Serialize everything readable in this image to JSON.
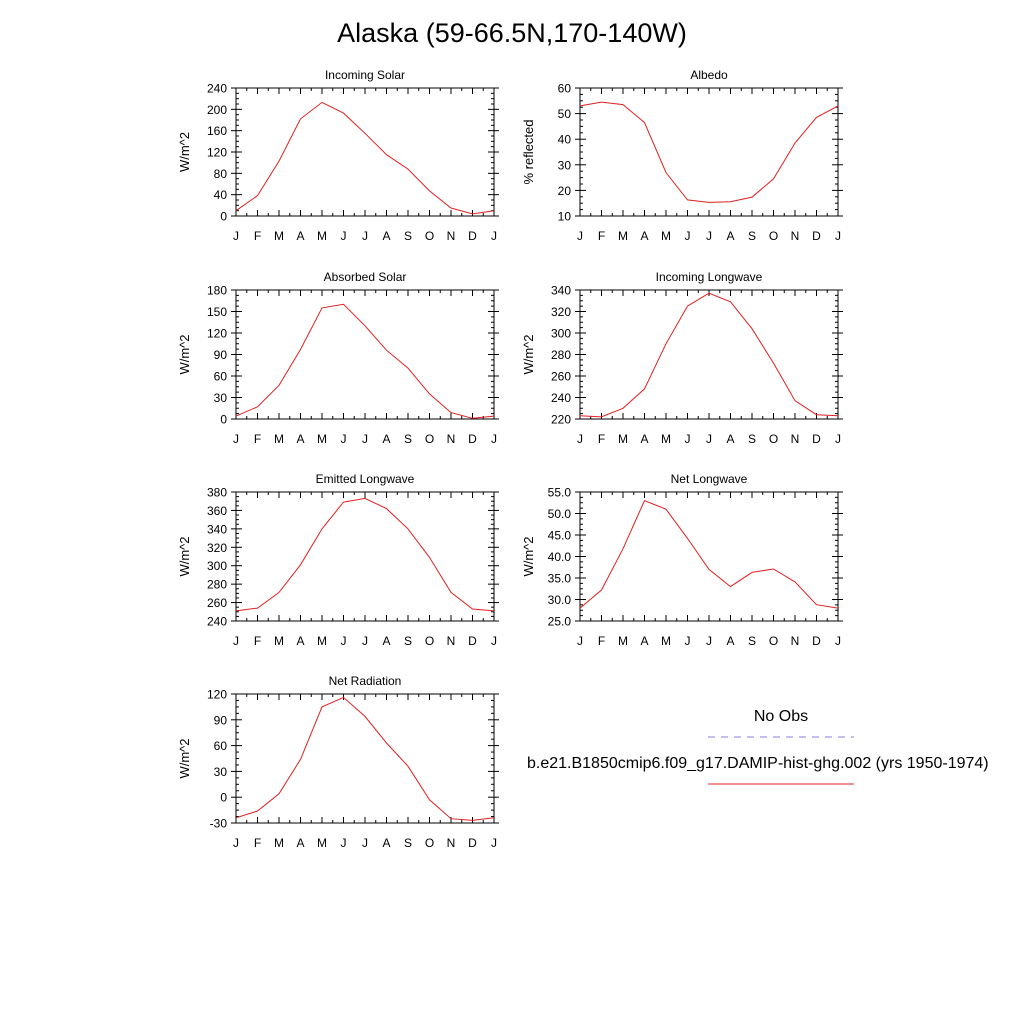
{
  "figure": {
    "title": "Alaska (59-66.5N,170-140W)"
  },
  "legend": {
    "obs_label": "No Obs",
    "obs_color": "#8080e0",
    "model_label": "b.e21.B1850cmip6.f09_g17.DAMIP-hist-ghg.002 (yrs 1950-1974)",
    "model_color": "#e02020"
  },
  "chart_data": [
    {
      "type": "line",
      "title": "Incoming Solar",
      "ylabel": "W/m^2",
      "categories": [
        "J",
        "F",
        "M",
        "A",
        "M",
        "J",
        "J",
        "A",
        "S",
        "O",
        "N",
        "D",
        "J"
      ],
      "ylim": [
        0,
        240
      ],
      "yticks": [
        "0",
        "40",
        "80",
        "120",
        "160",
        "200",
        "240"
      ],
      "series": [
        {
          "values": [
            10,
            38,
            103,
            182,
            213,
            193,
            155,
            115,
            88,
            47,
            15,
            4,
            10
          ]
        }
      ]
    },
    {
      "type": "line",
      "title": "Albedo",
      "ylabel": "% reflected",
      "categories": [
        "J",
        "F",
        "M",
        "A",
        "M",
        "J",
        "J",
        "A",
        "S",
        "O",
        "N",
        "D",
        "J"
      ],
      "ylim": [
        10,
        60
      ],
      "yticks": [
        "10",
        "20",
        "30",
        "40",
        "50",
        "60"
      ],
      "series": [
        {
          "values": [
            53,
            54.5,
            53.5,
            46.5,
            27,
            16.3,
            15.3,
            15.6,
            17.4,
            24.5,
            38.5,
            48.5,
            53
          ]
        }
      ]
    },
    {
      "type": "line",
      "title": "Absorbed Solar",
      "ylabel": "W/m^2",
      "categories": [
        "J",
        "F",
        "M",
        "A",
        "M",
        "J",
        "J",
        "A",
        "S",
        "O",
        "N",
        "D",
        "J"
      ],
      "ylim": [
        0,
        180
      ],
      "yticks": [
        "0",
        "30",
        "60",
        "90",
        "120",
        "150",
        "180"
      ],
      "series": [
        {
          "values": [
            4,
            17,
            47,
            97,
            155,
            160,
            130,
            96,
            71,
            35,
            9,
            1,
            4
          ]
        }
      ]
    },
    {
      "type": "line",
      "title": "Incoming Longwave",
      "ylabel": "W/m^2",
      "categories": [
        "J",
        "F",
        "M",
        "A",
        "M",
        "J",
        "J",
        "A",
        "S",
        "O",
        "N",
        "D",
        "J"
      ],
      "ylim": [
        220,
        340
      ],
      "yticks": [
        "220",
        "240",
        "260",
        "280",
        "300",
        "320",
        "340"
      ],
      "series": [
        {
          "values": [
            223,
            222,
            230,
            248,
            290,
            325,
            337,
            329,
            304,
            272,
            237,
            224,
            223
          ]
        }
      ]
    },
    {
      "type": "line",
      "title": "Emitted Longwave",
      "ylabel": "W/m^2",
      "categories": [
        "J",
        "F",
        "M",
        "A",
        "M",
        "J",
        "J",
        "A",
        "S",
        "O",
        "N",
        "D",
        "J"
      ],
      "ylim": [
        240,
        380
      ],
      "yticks": [
        "240",
        "260",
        "280",
        "300",
        "320",
        "340",
        "360",
        "380"
      ],
      "series": [
        {
          "values": [
            251,
            254,
            271,
            301,
            340,
            369,
            373,
            362,
            340,
            309,
            271,
            253,
            251
          ]
        }
      ]
    },
    {
      "type": "line",
      "title": "Net Longwave",
      "ylabel": "W/m^2",
      "categories": [
        "J",
        "F",
        "M",
        "A",
        "M",
        "J",
        "J",
        "A",
        "S",
        "O",
        "N",
        "D",
        "J"
      ],
      "ylim": [
        25,
        55
      ],
      "yticks": [
        "25.0",
        "30.0",
        "35.0",
        "40.0",
        "45.0",
        "50.0",
        "55.0"
      ],
      "series": [
        {
          "values": [
            28,
            32.2,
            41.8,
            53,
            51,
            44.2,
            37,
            33,
            36.3,
            37.1,
            34.1,
            28.8,
            28
          ]
        }
      ]
    },
    {
      "type": "line",
      "title": "Net Radiation",
      "ylabel": "W/m^2",
      "categories": [
        "J",
        "F",
        "M",
        "A",
        "M",
        "J",
        "J",
        "A",
        "S",
        "O",
        "N",
        "D",
        "J"
      ],
      "ylim": [
        -30,
        120
      ],
      "yticks": [
        "-30",
        "0",
        "30",
        "60",
        "90",
        "120"
      ],
      "series": [
        {
          "values": [
            -24,
            -16,
            4,
            44,
            105,
            116,
            94,
            63,
            36,
            -3,
            -25,
            -27,
            -24
          ]
        }
      ]
    }
  ]
}
